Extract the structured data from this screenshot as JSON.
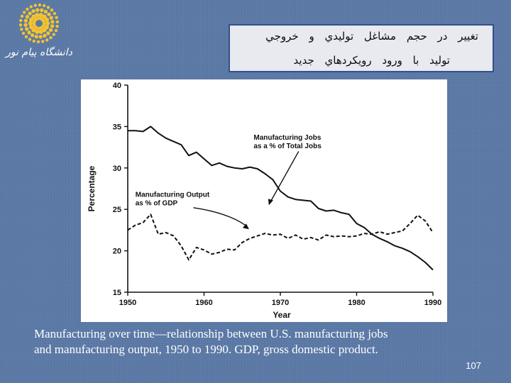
{
  "slide": {
    "title_line1": "تغيير در حجم مشاغل توليدي و خروجي",
    "title_line2": "توليد با ورود رويكردهاي جديد",
    "logo_text": "دانشگاه پيام نور",
    "caption_line1": "Manufacturing over time—relationship between U.S. manufacturing jobs",
    "caption_line2": "and manufacturing output, 1950 to 1990. GDP, gross domestic product.",
    "page_number": "107",
    "colors": {
      "background": "#5b79a6",
      "title_box": "#e8eaf0",
      "title_border": "#35518a",
      "logo": "#f2c230",
      "text": "#ffffff"
    }
  },
  "chart_data": {
    "type": "line",
    "xlabel": "Year",
    "ylabel": "Percentage",
    "xlim": [
      1950,
      1990
    ],
    "ylim": [
      15,
      40
    ],
    "x_ticks": [
      1950,
      1960,
      1970,
      1980,
      1990
    ],
    "y_ticks": [
      15,
      20,
      25,
      30,
      35,
      40
    ],
    "grid": false,
    "legend": "annotations",
    "series": [
      {
        "name": "Manufacturing Jobs as a % of Total Jobs",
        "label_lines": [
          "Manufacturing Jobs",
          "as a % of Total Jobs"
        ],
        "style": "solid",
        "x": [
          1950,
          1951,
          1952,
          1953,
          1954,
          1955,
          1956,
          1957,
          1958,
          1959,
          1960,
          1961,
          1962,
          1963,
          1964,
          1965,
          1966,
          1967,
          1968,
          1969,
          1970,
          1971,
          1972,
          1973,
          1974,
          1975,
          1976,
          1977,
          1978,
          1979,
          1980,
          1981,
          1982,
          1983,
          1984,
          1985,
          1986,
          1987,
          1988,
          1989,
          1990
        ],
        "values": [
          34.5,
          34.5,
          34.4,
          35.0,
          34.2,
          33.6,
          33.2,
          32.8,
          31.5,
          31.9,
          31.1,
          30.3,
          30.6,
          30.2,
          30.0,
          29.9,
          30.1,
          29.9,
          29.3,
          28.6,
          27.2,
          26.5,
          26.2,
          26.1,
          26.0,
          25.1,
          24.8,
          24.9,
          24.6,
          24.4,
          23.3,
          22.8,
          22.0,
          21.5,
          21.1,
          20.6,
          20.3,
          19.9,
          19.3,
          18.6,
          17.7
        ]
      },
      {
        "name": "Manufacturing Output as % of GDP",
        "label_lines": [
          "Manufacturing Output",
          "as % of GDP"
        ],
        "style": "dashed",
        "x": [
          1950,
          1951,
          1952,
          1953,
          1954,
          1955,
          1956,
          1957,
          1958,
          1959,
          1960,
          1961,
          1962,
          1963,
          1964,
          1965,
          1966,
          1967,
          1968,
          1969,
          1970,
          1971,
          1972,
          1973,
          1974,
          1975,
          1976,
          1977,
          1978,
          1979,
          1980,
          1981,
          1982,
          1983,
          1984,
          1985,
          1986,
          1987,
          1988,
          1989,
          1990
        ],
        "values": [
          22.5,
          23.1,
          23.4,
          24.4,
          22.0,
          22.2,
          21.8,
          20.6,
          18.9,
          20.4,
          20.1,
          19.6,
          19.8,
          20.2,
          20.1,
          21.0,
          21.5,
          21.8,
          22.1,
          21.9,
          22.0,
          21.5,
          21.9,
          21.4,
          21.6,
          21.3,
          21.9,
          21.7,
          21.8,
          21.7,
          21.8,
          22.1,
          22.0,
          22.3,
          22.0,
          22.2,
          22.4,
          23.3,
          24.3,
          23.6,
          22.2
        ]
      }
    ]
  }
}
